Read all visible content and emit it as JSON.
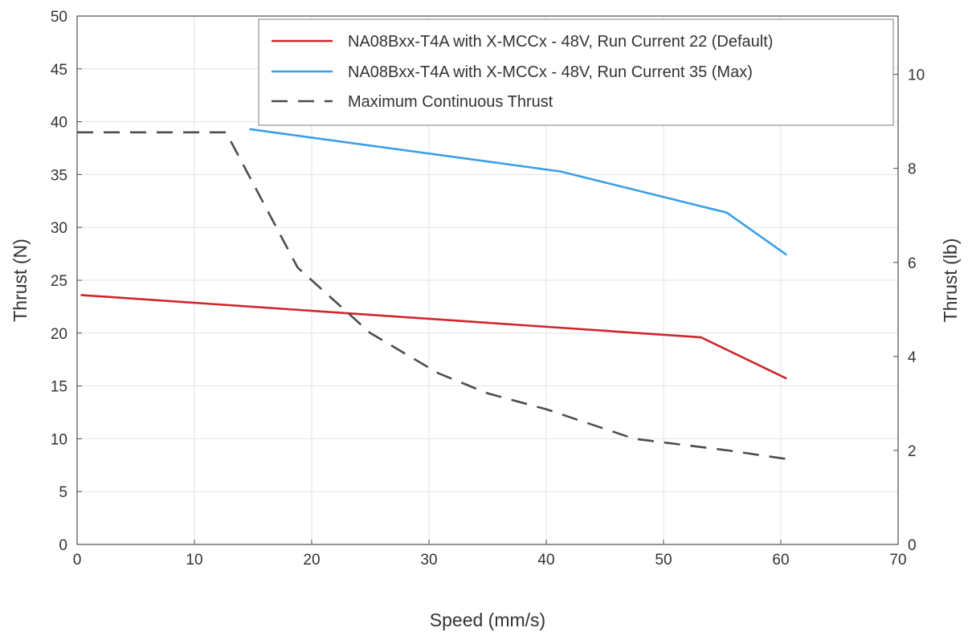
{
  "chart_data": {
    "type": "line",
    "xlabel": "Speed (mm/s)",
    "ylabel": "Thrust (N)",
    "y2label": "Thrust (lb)",
    "xlim": [
      0,
      70
    ],
    "ylim": [
      0,
      50
    ],
    "y2lim": [
      0,
      11.24
    ],
    "x_ticks": [
      0,
      10,
      20,
      30,
      40,
      50,
      60,
      70
    ],
    "y_ticks": [
      0,
      5,
      10,
      15,
      20,
      25,
      30,
      35,
      40,
      45,
      50
    ],
    "y2_ticks": [
      0,
      2,
      4,
      6,
      8,
      10
    ],
    "grid": true,
    "legend_position": "top-right",
    "series": [
      {
        "name": "NA08Bxx-T4A with X-MCCx - 48V, Run Current 22 (Default)",
        "color": "#d0262b",
        "style": "solid",
        "points": [
          [
            0.3,
            23.6
          ],
          [
            53.2,
            19.6
          ],
          [
            60.5,
            15.7
          ]
        ]
      },
      {
        "name": "NA08Bxx-T4A with X-MCCx - 48V, Run Current 35 (Max)",
        "color": "#3b9fe6",
        "style": "solid",
        "points": [
          [
            14.7,
            39.3
          ],
          [
            41.2,
            35.3
          ],
          [
            55.4,
            31.4
          ],
          [
            60.5,
            27.4
          ]
        ]
      },
      {
        "name": "Maximum Continuous Thrust",
        "color": "#4d4d4d",
        "style": "dashed",
        "points": [
          [
            0.0,
            39.0
          ],
          [
            12.7,
            39.0
          ],
          [
            18.8,
            26.2
          ],
          [
            25.0,
            20.0
          ],
          [
            30.8,
            16.2
          ],
          [
            35.0,
            14.3
          ],
          [
            40.0,
            12.8
          ],
          [
            47.5,
            10.0
          ],
          [
            55.5,
            8.9
          ],
          [
            61.0,
            8.0
          ]
        ]
      }
    ]
  }
}
